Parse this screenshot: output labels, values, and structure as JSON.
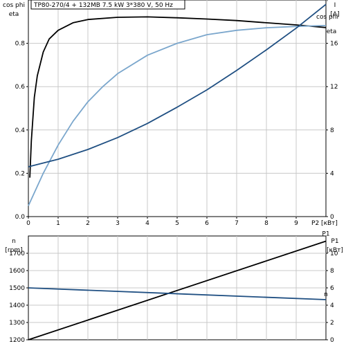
{
  "chart_data": [
    {
      "type": "line",
      "title": "TP80-270/4 + 132MB   7.5 kW   3*380 V, 50 Hz",
      "xlabel": "P2 [кВт]",
      "xlim": [
        0,
        10
      ],
      "x_ticks": [
        0,
        1,
        2,
        3,
        4,
        5,
        6,
        7,
        8,
        9
      ],
      "left_axis": {
        "labels": [
          "cos phi",
          "eta"
        ],
        "ylim": [
          0,
          1.0
        ],
        "ticks": [
          "0.0",
          "0.2",
          "0.4",
          "0.6",
          "0.8"
        ]
      },
      "right_axis": {
        "labels": [
          "I",
          "[A]"
        ],
        "ylim": [
          0,
          20
        ],
        "ticks": [
          "0",
          "4",
          "8",
          "12",
          "16"
        ]
      },
      "grid": true,
      "series": [
        {
          "name": "eta",
          "axis": "left",
          "color": "#000000",
          "x": [
            0.05,
            0.1,
            0.2,
            0.3,
            0.5,
            0.7,
            1.0,
            1.5,
            2.0,
            3.0,
            4.0,
            5.0,
            6.0,
            7.0,
            8.0,
            9.0,
            10.0
          ],
          "y": [
            0.18,
            0.35,
            0.55,
            0.65,
            0.76,
            0.82,
            0.86,
            0.895,
            0.91,
            0.92,
            0.922,
            0.918,
            0.912,
            0.905,
            0.895,
            0.885,
            0.873
          ]
        },
        {
          "name": "cos phi",
          "axis": "left",
          "color": "#7aa6cc",
          "x": [
            0,
            0.5,
            1.0,
            1.5,
            2.0,
            2.5,
            3.0,
            4.0,
            5.0,
            6.0,
            7.0,
            8.0,
            9.0,
            10.0
          ],
          "y": [
            0.05,
            0.2,
            0.33,
            0.44,
            0.53,
            0.6,
            0.66,
            0.745,
            0.8,
            0.84,
            0.86,
            0.872,
            0.878,
            0.882
          ]
        },
        {
          "name": "I",
          "axis": "right",
          "color": "#1f4f82",
          "x": [
            0,
            1,
            2,
            3,
            4,
            5,
            6,
            7,
            8,
            9,
            10
          ],
          "y": [
            4.6,
            5.3,
            6.2,
            7.3,
            8.6,
            10.1,
            11.7,
            13.5,
            15.4,
            17.4,
            19.6
          ]
        }
      ]
    },
    {
      "type": "line",
      "title": "",
      "xlabel": "",
      "xlim": [
        0,
        10
      ],
      "left_axis": {
        "labels": [
          "n",
          "[rpm]"
        ],
        "ylim": [
          1200,
          1800
        ],
        "ticks": [
          "1200",
          "1300",
          "1400",
          "1500",
          "1600",
          "1700"
        ]
      },
      "right_axis": {
        "labels": [
          "P1",
          "[кВт]"
        ],
        "ylim": [
          0,
          12
        ],
        "ticks": [
          "0",
          "2",
          "4",
          "6",
          "8",
          "10"
        ]
      },
      "grid": true,
      "series": [
        {
          "name": "P1",
          "axis": "right",
          "color": "#000000",
          "x": [
            0,
            10
          ],
          "y": [
            0.0,
            11.4
          ]
        },
        {
          "name": "n",
          "axis": "left",
          "color": "#1f4f82",
          "x": [
            0,
            10
          ],
          "y": [
            1500,
            1432
          ]
        }
      ]
    }
  ]
}
